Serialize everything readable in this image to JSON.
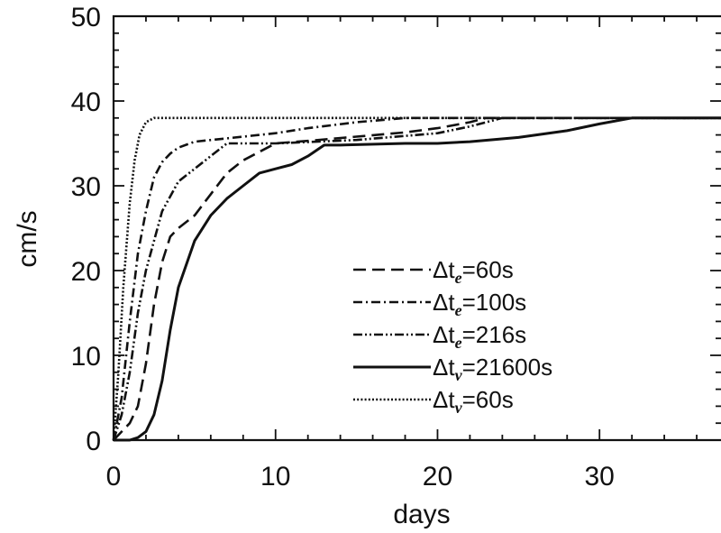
{
  "chart_data": {
    "type": "line",
    "title": "",
    "xlabel": "days",
    "ylabel": "cm/s",
    "xlim": [
      0,
      37.5
    ],
    "ylim": [
      0,
      50
    ],
    "xticks": [
      0,
      10,
      20,
      30
    ],
    "yticks": [
      0,
      10,
      20,
      30,
      40,
      50
    ],
    "grid": false,
    "legend_position": "center-right",
    "series": [
      {
        "name": "Δte=60s",
        "label_main": "Δt",
        "label_sub": "e",
        "label_rest": "=60s",
        "style": "dashed",
        "x": [
          0,
          1,
          1.5,
          2,
          2.5,
          3,
          3.5,
          4,
          5,
          6,
          7,
          8,
          9,
          10,
          12,
          15,
          18,
          20,
          22,
          23,
          30,
          37.5
        ],
        "y": [
          0,
          2,
          4,
          9,
          16,
          21,
          24,
          25,
          26.5,
          29,
          31.5,
          33,
          34,
          35,
          35.3,
          35.8,
          36.3,
          36.8,
          37.5,
          38,
          38,
          38
        ]
      },
      {
        "name": "Δte=100s",
        "label_main": "Δt",
        "label_sub": "e",
        "label_rest": "=100s",
        "style": "dash-dot",
        "x": [
          0,
          0.5,
          1,
          1.5,
          2,
          2.5,
          3,
          3.5,
          4,
          5,
          7,
          10,
          12,
          15,
          18,
          37.5
        ],
        "y": [
          0,
          5,
          14,
          22,
          27,
          31,
          32.8,
          33.8,
          34.5,
          35.2,
          35.6,
          36.2,
          36.8,
          37.5,
          38,
          38
        ]
      },
      {
        "name": "Δte=216s",
        "label_main": "Δt",
        "label_sub": "e",
        "label_rest": "=216s",
        "style": "dash-dot-dot",
        "x": [
          0,
          0.5,
          1,
          1.5,
          2,
          3,
          4,
          5,
          6,
          7,
          10,
          15,
          20,
          22,
          24,
          37.5
        ],
        "y": [
          0,
          3,
          8,
          15,
          20,
          27,
          30.5,
          32,
          33.5,
          35,
          35,
          35.4,
          36.2,
          37,
          38,
          38
        ]
      },
      {
        "name": "Δtv=21600s",
        "label_main": "Δt",
        "label_sub": "v",
        "label_rest": "=21600s",
        "style": "solid",
        "x": [
          0,
          1,
          1.5,
          2,
          2.5,
          3,
          3.5,
          4,
          5,
          6,
          7,
          8,
          9,
          10,
          11,
          12,
          13,
          14,
          18,
          20,
          22,
          25,
          28,
          30,
          32,
          37.5
        ],
        "y": [
          0,
          0,
          0.3,
          1,
          3,
          7,
          13,
          18,
          23.5,
          26.5,
          28.5,
          30,
          31.5,
          32,
          32.5,
          33.5,
          34.8,
          34.8,
          35,
          35,
          35.2,
          35.7,
          36.5,
          37.3,
          38,
          38
        ]
      },
      {
        "name": "Δtv=60s",
        "label_main": "Δt",
        "label_sub": "v",
        "label_rest": "=60s",
        "style": "dotted",
        "x": [
          0,
          0.3,
          0.6,
          1,
          1.3,
          1.6,
          2,
          2.5,
          37.5
        ],
        "y": [
          0,
          8,
          18,
          28,
          33,
          36,
          37.5,
          38,
          38
        ]
      }
    ]
  }
}
